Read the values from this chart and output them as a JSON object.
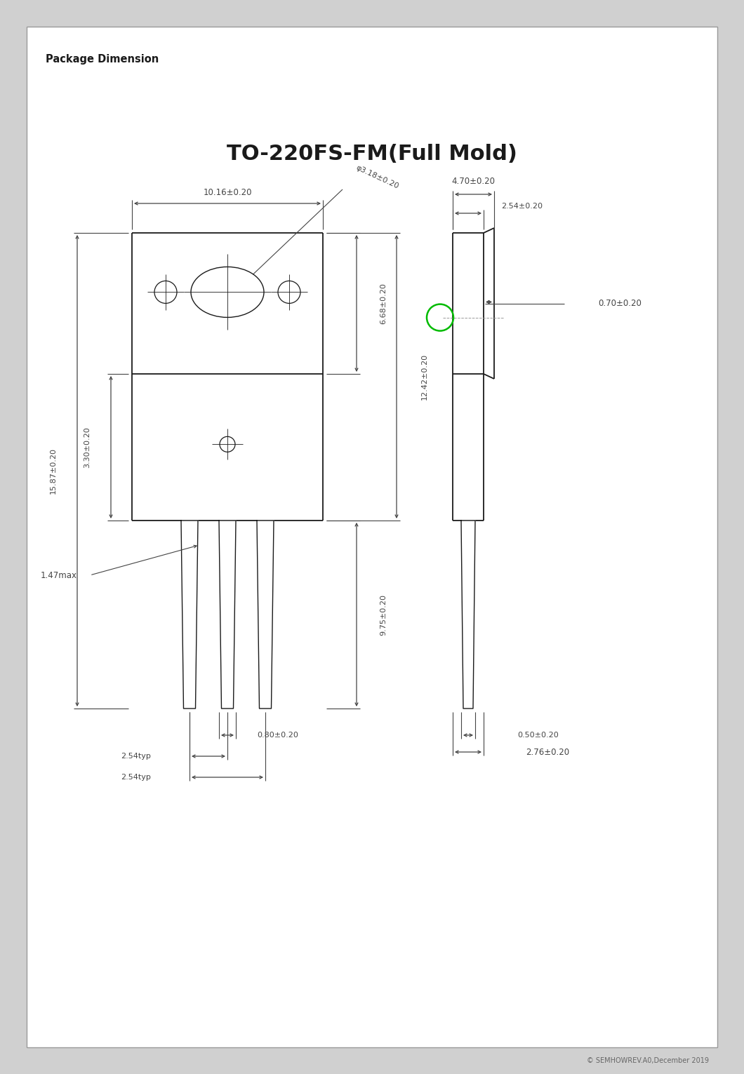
{
  "title": "TO-220FS-FM(Full Mold)",
  "header": "Package Dimension",
  "footer": "© SEMHOWREV.A0,December 2019",
  "bg_color": "#ffffff",
  "border_color": "#aaaaaa",
  "line_color": "#1a1a1a",
  "dim_color": "#444444",
  "green_circle_color": "#00bb00",
  "page_bg": "#d0d0d0",
  "dimensions": {
    "width_top": "10.16±0.20",
    "hole_dia": "φ3.18±0.20",
    "height_upper": "6.68±0.20",
    "height_lower": "12.42±0.20",
    "total_height": "15.87±0.20",
    "tab_height": "3.30±0.20",
    "lead_length": "9.75±0.20",
    "lead_width": "0.80±0.20",
    "pin_pitch1": "2.54typ",
    "pin_pitch2": "2.54typ",
    "max_thickness": "1.47max",
    "side_width_top": "4.70±0.20",
    "side_width_mid": "2.54±0.20",
    "side_thickness": "0.70±0.20",
    "lead_width_side": "0.50±0.20",
    "lead_width_side2": "2.76±0.20"
  }
}
